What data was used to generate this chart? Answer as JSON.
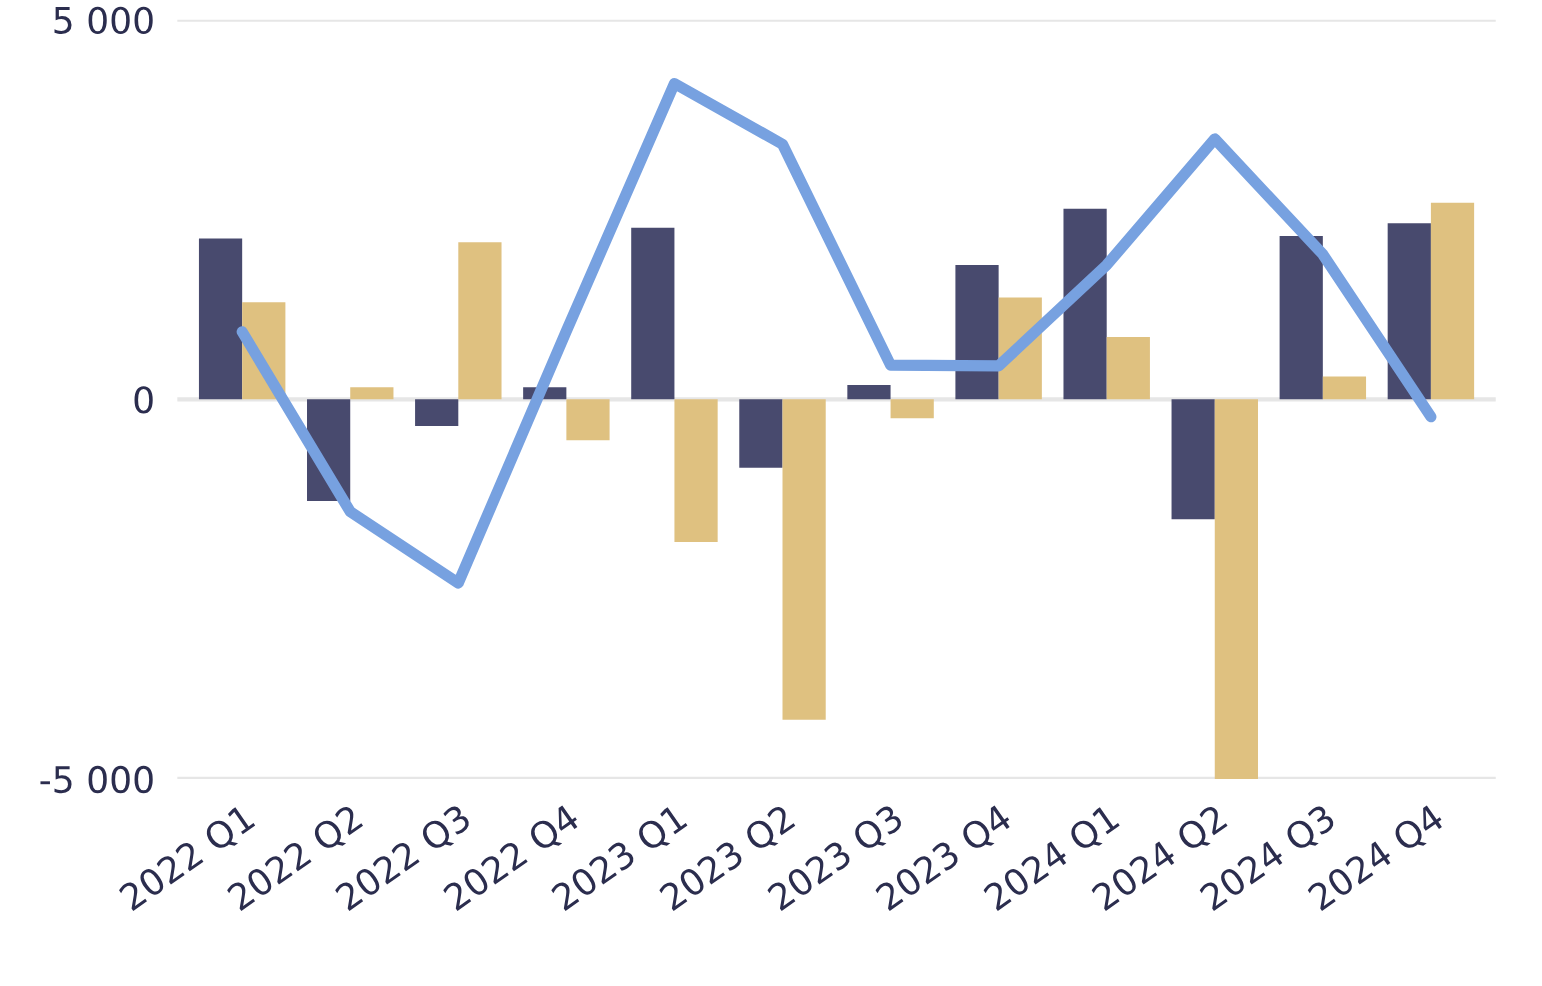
{
  "chart_data": {
    "type": "bar",
    "categories": [
      "2022 Q1",
      "2022 Q2",
      "2022 Q3",
      "2022 Q4",
      "2023 Q1",
      "2023 Q2",
      "2023 Q3",
      "2023 Q4",
      "2024 Q1",
      "2024 Q2",
      "2024 Q3",
      "2024 Q4"
    ],
    "series": [
      {
        "color": "#484a6e",
        "values": [
          2120,
          -1340,
          -350,
          160,
          2260,
          -900,
          190,
          1770,
          2510,
          -1580,
          2150,
          2320
        ]
      },
      {
        "color": "#dfc180",
        "values": [
          1280,
          160,
          2070,
          -540,
          -1880,
          -4220,
          -250,
          1340,
          820,
          -5000,
          300,
          2590
        ]
      },
      {
        "type": "line",
        "color": "#77a1e0",
        "values": [
          890,
          -1480,
          -2420,
          900,
          4160,
          3360,
          450,
          440,
          1770,
          3430,
          1910,
          -230
        ]
      }
    ],
    "ylim": [
      -5000,
      5000
    ],
    "yticks": [
      {
        "value": -5000,
        "label": "-5 000"
      },
      0,
      {
        "value": 5000,
        "label": "5 000"
      }
    ],
    "grid": "y"
  }
}
